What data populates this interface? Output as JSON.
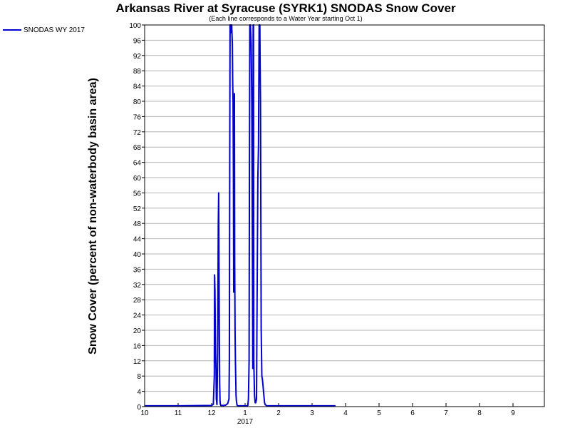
{
  "chart_data": {
    "type": "line",
    "title": "Arkansas River at Syracuse (SYRK1) SNODAS Snow Cover",
    "subtitle": "(Each line corresponds to a Water Year starting Oct 1)",
    "xlabel": "",
    "ylabel": "Snow Cover (percent of non-waterbody basin area)",
    "ylim": [
      0,
      100
    ],
    "yticks": [
      0,
      4,
      8,
      12,
      16,
      20,
      24,
      28,
      32,
      36,
      40,
      44,
      48,
      52,
      56,
      60,
      64,
      68,
      72,
      76,
      80,
      84,
      88,
      92,
      96,
      100
    ],
    "xlim": [
      10,
      22
    ],
    "xticks": [
      {
        "v": 10,
        "label": "10"
      },
      {
        "v": 11,
        "label": "11"
      },
      {
        "v": 12,
        "label": "12"
      },
      {
        "v": 13,
        "label": "1"
      },
      {
        "v": 14,
        "label": "2"
      },
      {
        "v": 15,
        "label": "3"
      },
      {
        "v": 16,
        "label": "4"
      },
      {
        "v": 17,
        "label": "5"
      },
      {
        "v": 18,
        "label": "6"
      },
      {
        "v": 19,
        "label": "7"
      },
      {
        "v": 20,
        "label": "8"
      },
      {
        "v": 21,
        "label": "9"
      }
    ],
    "year_label": {
      "v": 13,
      "label": "2017"
    },
    "grid": true,
    "legend_position": "top-left",
    "series": [
      {
        "name": "SNODAS WY 2017",
        "color": "#0000cc",
        "x": [
          10.0,
          11.0,
          12.0,
          12.05,
          12.08,
          12.09,
          12.1,
          12.11,
          12.12,
          12.13,
          12.14,
          12.16,
          12.18,
          12.19,
          12.2,
          12.21,
          12.22,
          12.23,
          12.24,
          12.25,
          12.26,
          12.27,
          12.28,
          12.3,
          12.33,
          12.36,
          12.42,
          12.48,
          12.52,
          12.53,
          12.54,
          12.55,
          12.56,
          12.57,
          12.58,
          12.6,
          12.62,
          12.63,
          12.64,
          12.65,
          12.66,
          12.67,
          12.68,
          12.69,
          12.7,
          12.71,
          12.72,
          12.73,
          12.74,
          12.75,
          12.76,
          12.78,
          12.8,
          12.85,
          12.9,
          12.95,
          13.0,
          13.05,
          13.08,
          13.1,
          13.12,
          13.13,
          13.14,
          13.15,
          13.16,
          13.18,
          13.2,
          13.22,
          13.23,
          13.24,
          13.25,
          13.26,
          13.28,
          13.3,
          13.32,
          13.34,
          13.36,
          13.38,
          13.4,
          13.42,
          13.44,
          13.45,
          13.46,
          13.47,
          13.48,
          13.5,
          13.52,
          13.54,
          13.56,
          13.58,
          13.6,
          13.65,
          13.7,
          13.8,
          14.0,
          14.5,
          15.0,
          15.5,
          15.7
        ],
        "y": [
          0.2,
          0.2,
          0.3,
          0.6,
          8,
          34.5,
          30,
          20,
          14,
          10,
          2,
          0.5,
          14,
          30,
          48,
          56,
          40,
          20,
          6,
          1.5,
          0.7,
          0.4,
          0.3,
          0.3,
          0.3,
          0.3,
          0.4,
          0.8,
          2,
          12,
          62,
          100,
          100,
          98,
          100,
          100,
          95,
          85,
          80,
          60,
          30,
          50,
          82,
          38,
          20,
          12,
          8,
          3,
          1.5,
          0.8,
          0.4,
          0.2,
          0.2,
          0.2,
          0.2,
          0.2,
          0.2,
          0.2,
          0.3,
          2,
          12,
          62,
          100,
          100,
          100,
          95,
          80,
          40,
          10,
          100,
          100,
          12,
          3,
          1,
          1,
          2,
          30,
          60,
          68,
          100,
          100,
          90,
          80,
          50,
          20,
          8,
          7,
          5,
          3,
          1,
          0.5,
          0.2,
          0.2,
          0.2,
          0.2,
          0.2,
          0.2,
          0.2,
          0.2
        ]
      }
    ]
  }
}
